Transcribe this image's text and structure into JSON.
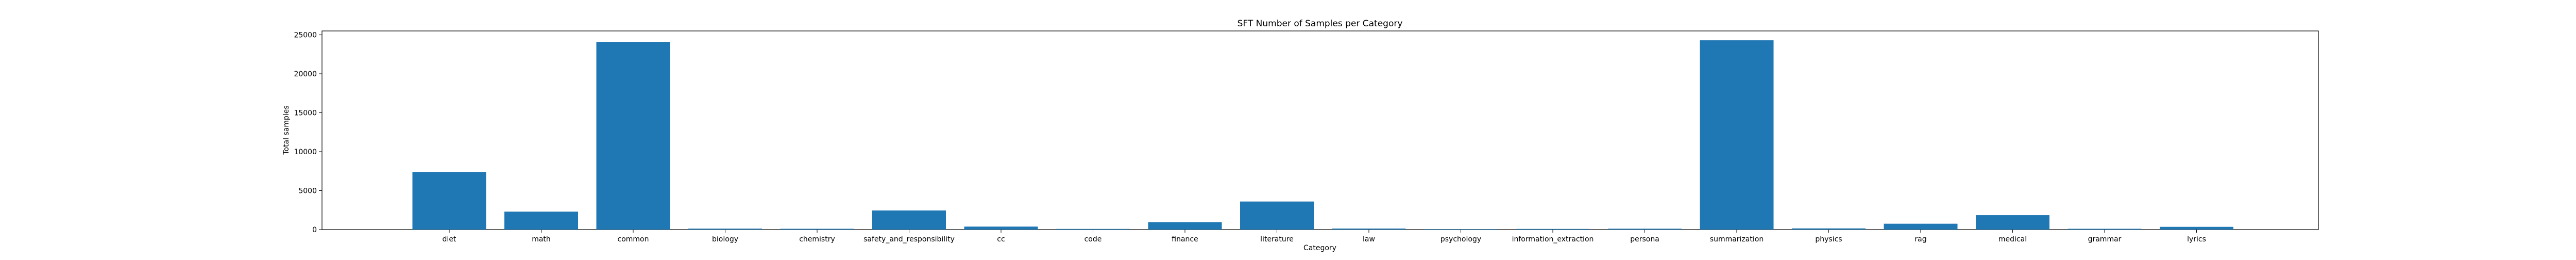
{
  "chart_data": {
    "type": "bar",
    "title": "SFT Number of Samples per Category",
    "xlabel": "Category",
    "ylabel": "Total samples",
    "categories": [
      "diet",
      "math",
      "common",
      "biology",
      "chemistry",
      "safety_and_responsibility",
      "cc",
      "code",
      "finance",
      "literature",
      "law",
      "psychology",
      "information_extraction",
      "persona",
      "summarization",
      "physics",
      "rag",
      "medical",
      "grammar",
      "lyrics"
    ],
    "values": [
      7400,
      2300,
      24100,
      120,
      100,
      2450,
      380,
      80,
      950,
      3600,
      130,
      60,
      80,
      110,
      24300,
      150,
      750,
      1850,
      100,
      350
    ],
    "ylim": [
      0,
      25500
    ],
    "yticks": [
      0,
      5000,
      10000,
      15000,
      20000,
      25000
    ],
    "bar_color": "#1f77b4",
    "grid": false,
    "legend": false
  }
}
